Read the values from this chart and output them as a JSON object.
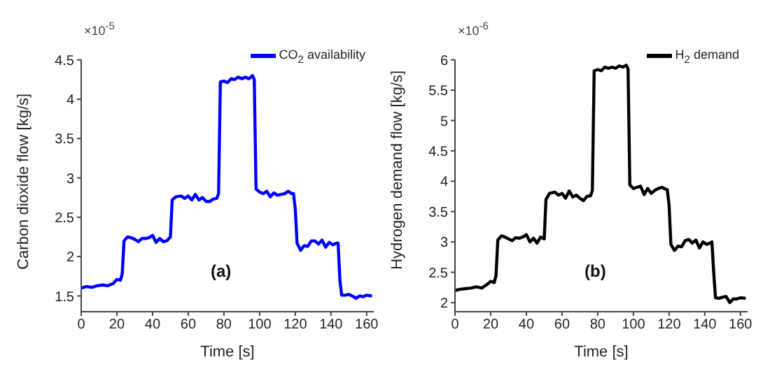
{
  "chart_data": [
    {
      "type": "line",
      "xlabel": "Time [s]",
      "ylabel": "Carbon dioxide flow [kg/s]",
      "annotations": [
        "×10$^{-5}$",
        "(a)"
      ],
      "xlim": [
        0,
        164
      ],
      "xticks": [
        0,
        20,
        40,
        60,
        80,
        100,
        120,
        140,
        160
      ],
      "ylim": [
        1.3,
        4.5
      ],
      "yticks": [
        1.5,
        2,
        2.5,
        3,
        3.5,
        4,
        4.5
      ],
      "grid": false,
      "legend": "top right",
      "marker": "none",
      "line_style": "solid",
      "x": [
        0,
        3,
        6,
        9,
        12,
        15,
        18,
        20,
        22,
        23,
        24,
        26,
        28,
        30,
        32,
        34,
        36,
        38,
        40,
        42,
        44,
        46,
        48,
        50,
        51,
        53,
        56,
        58,
        60,
        62,
        64,
        66,
        68,
        70,
        72,
        74,
        76,
        77,
        78,
        80,
        82,
        84,
        86,
        88,
        90,
        92,
        94,
        96,
        97,
        98,
        100,
        102,
        104,
        106,
        108,
        110,
        112,
        114,
        116,
        118,
        119,
        120,
        121,
        123,
        125,
        127,
        129,
        131,
        133,
        135,
        137,
        139,
        141,
        143,
        144,
        145,
        146,
        148,
        150,
        152,
        154,
        156,
        158,
        160,
        163
      ],
      "series": [
        {
          "name": "CO$_{2}$ availability",
          "color": "#0000ff",
          "values": [
            1.6,
            1.62,
            1.61,
            1.63,
            1.64,
            1.63,
            1.66,
            1.71,
            1.7,
            1.78,
            2.2,
            2.25,
            2.24,
            2.22,
            2.19,
            2.23,
            2.23,
            2.24,
            2.27,
            2.18,
            2.23,
            2.19,
            2.2,
            2.25,
            2.72,
            2.76,
            2.77,
            2.74,
            2.77,
            2.72,
            2.79,
            2.72,
            2.75,
            2.7,
            2.7,
            2.73,
            2.74,
            2.8,
            4.22,
            4.23,
            4.21,
            4.26,
            4.25,
            4.28,
            4.26,
            4.28,
            4.26,
            4.3,
            4.25,
            2.86,
            2.82,
            2.8,
            2.83,
            2.76,
            2.81,
            2.78,
            2.79,
            2.8,
            2.83,
            2.8,
            2.8,
            2.6,
            2.17,
            2.08,
            2.14,
            2.13,
            2.2,
            2.2,
            2.16,
            2.21,
            2.12,
            2.18,
            2.15,
            2.17,
            2.17,
            1.7,
            1.51,
            1.51,
            1.52,
            1.5,
            1.47,
            1.5,
            1.49,
            1.51,
            1.5
          ]
        }
      ]
    },
    {
      "type": "line",
      "xlabel": "Time [s]",
      "ylabel": "Hydrogen demand flow [kg/s]",
      "annotations": [
        "×10$^{-6}$",
        "(b)"
      ],
      "xlim": [
        0,
        164
      ],
      "xticks": [
        0,
        20,
        40,
        60,
        80,
        100,
        120,
        140,
        160
      ],
      "ylim": [
        1.85,
        6
      ],
      "yticks": [
        2,
        2.5,
        3,
        3.5,
        4,
        4.5,
        5,
        5.5,
        6
      ],
      "grid": false,
      "legend": "top right",
      "marker": "none",
      "line_style": "solid",
      "x": [
        0,
        3,
        6,
        9,
        12,
        15,
        18,
        20,
        22,
        23,
        24,
        26,
        28,
        30,
        32,
        34,
        36,
        38,
        40,
        42,
        44,
        46,
        48,
        50,
        51,
        53,
        56,
        58,
        60,
        62,
        64,
        66,
        68,
        70,
        72,
        74,
        76,
        77,
        78,
        80,
        82,
        84,
        86,
        88,
        90,
        92,
        94,
        96,
        97,
        98,
        100,
        102,
        104,
        106,
        108,
        110,
        112,
        114,
        116,
        118,
        119,
        120,
        121,
        123,
        125,
        127,
        129,
        131,
        133,
        135,
        137,
        139,
        141,
        143,
        144,
        145,
        146,
        148,
        150,
        152,
        154,
        156,
        158,
        160,
        163
      ],
      "series": [
        {
          "name": "H$_{2}$ demand",
          "color": "#000000",
          "values": [
            2.2,
            2.22,
            2.23,
            2.24,
            2.26,
            2.24,
            2.3,
            2.35,
            2.33,
            2.45,
            3.03,
            3.1,
            3.08,
            3.05,
            3.02,
            3.07,
            3.06,
            3.08,
            3.12,
            3.0,
            3.06,
            2.98,
            3.08,
            3.05,
            3.7,
            3.8,
            3.82,
            3.77,
            3.8,
            3.72,
            3.84,
            3.74,
            3.77,
            3.72,
            3.68,
            3.75,
            3.76,
            3.85,
            5.82,
            5.84,
            5.82,
            5.88,
            5.86,
            5.88,
            5.86,
            5.9,
            5.88,
            5.91,
            5.85,
            3.94,
            3.88,
            3.9,
            3.92,
            3.78,
            3.88,
            3.8,
            3.85,
            3.88,
            3.9,
            3.87,
            3.86,
            3.6,
            2.96,
            2.86,
            2.93,
            2.92,
            3.02,
            3.04,
            2.98,
            3.03,
            2.9,
            3.0,
            2.96,
            2.98,
            3.0,
            2.5,
            2.08,
            2.07,
            2.09,
            2.1,
            2.0,
            2.06,
            2.06,
            2.08,
            2.07
          ]
        }
      ]
    }
  ]
}
